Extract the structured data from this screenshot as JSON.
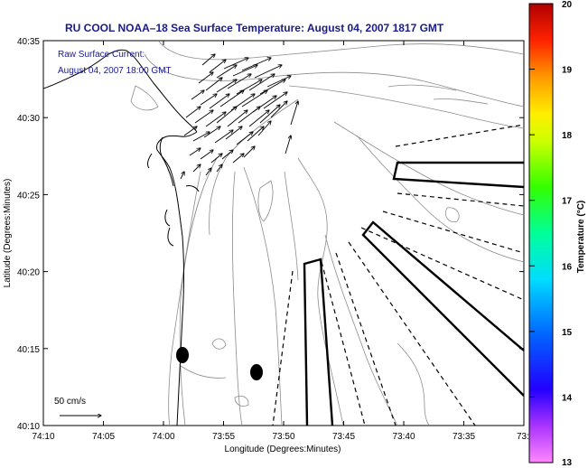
{
  "title": "RU COOL  NOAA–18  Sea Surface Temperature:  August 04, 2007 1817 GMT",
  "annotation": {
    "line1": "Raw Surface Current:",
    "line2": "August 04, 2007 18:00 GMT"
  },
  "axes": {
    "xlabel": "Longitude (Degrees:Minutes)",
    "ylabel": "Latitude (Degrees:Minutes)",
    "xticks": [
      "74:10",
      "74:05",
      "74:00",
      "73:55",
      "73:50",
      "73:45",
      "73:40",
      "73:35",
      "73:3"
    ],
    "yticks": [
      "40:35",
      "40:30",
      "40:25",
      "40:20",
      "40:15",
      "40:10"
    ]
  },
  "scale_bar": {
    "label": "50 cm/s"
  },
  "colorbar": {
    "label": "Temperature (°C)",
    "ticks": [
      "20",
      "19",
      "18",
      "17",
      "16",
      "15",
      "14",
      "13"
    ],
    "range": [
      13,
      20
    ],
    "colors": [
      "#ff66ff",
      "#8800ff",
      "#0000ff",
      "#0088ff",
      "#00ffff",
      "#00ff88",
      "#00ff00",
      "#aaff00",
      "#ffff00",
      "#ffaa00",
      "#ff5500",
      "#ff0000",
      "#aa0000"
    ]
  },
  "icons": [
    "north-arrow-free",
    "current-vector-arrows",
    "filled-markers"
  ]
}
